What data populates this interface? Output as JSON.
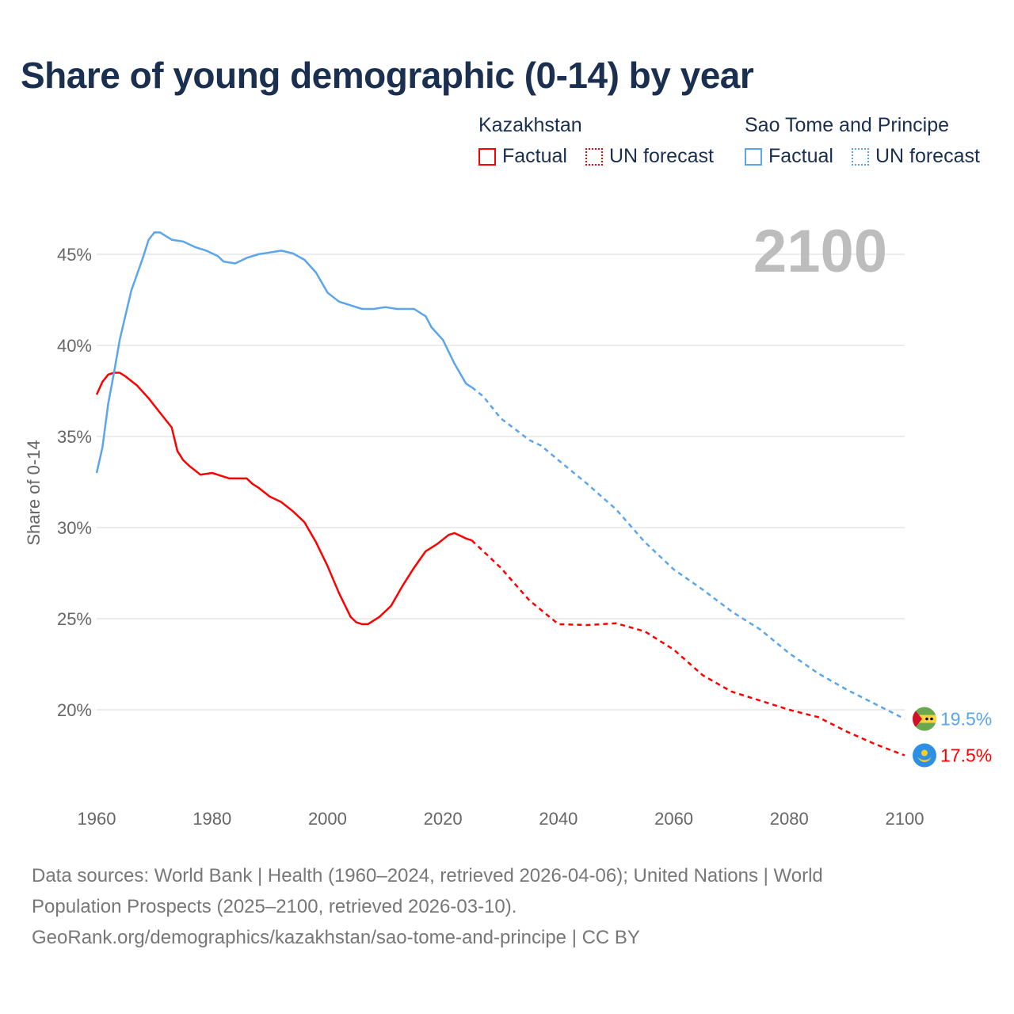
{
  "title": "Share of young demographic (0-14) by year",
  "current_year_label": "2100",
  "legend": [
    {
      "country": "Kazakhstan",
      "color": "#ff0000",
      "factual": "Factual",
      "forecast": "UN forecast"
    },
    {
      "country": "Sao Tome and Principe",
      "color": "#5aa5ec",
      "factual": "Factual",
      "forecast": "UN forecast"
    }
  ],
  "footer": {
    "line1": "Data sources: World Bank | Health (1960–2024, retrieved 2026-04-06); United Nations | World",
    "line2": "Population Prospects (2025–2100, retrieved 2026-03-10).",
    "line3": "GeoRank.org/demographics/kazakhstan/sao-tome-and-principe | CC BY"
  },
  "chart_data": {
    "type": "line",
    "title": "Share of young demographic (0-14) by year",
    "xlabel": "",
    "ylabel": "Share of 0-14",
    "xlim": [
      1960,
      2100
    ],
    "ylim": [
      17,
      47
    ],
    "x_ticks": [
      1960,
      1980,
      2000,
      2020,
      2040,
      2060,
      2080,
      2100
    ],
    "x_tick_labels": [
      "1960",
      "1980",
      "2000",
      "2020",
      "2040",
      "2060",
      "2080",
      "2100"
    ],
    "y_ticks": [
      20,
      25,
      30,
      35,
      40,
      45
    ],
    "y_tick_labels": [
      "20%",
      "25%",
      "30%",
      "35%",
      "40%",
      "45%"
    ],
    "grid": true,
    "legend_position": "top-right",
    "series": [
      {
        "name": "Kazakhstan",
        "color": "#ff0000",
        "end_label": "17.5%",
        "factual": [
          [
            1960,
            37.3
          ],
          [
            1961,
            38.0
          ],
          [
            1962,
            38.4
          ],
          [
            1963,
            38.5
          ],
          [
            1964,
            38.5
          ],
          [
            1965,
            38.3
          ],
          [
            1967,
            37.8
          ],
          [
            1969,
            37.1
          ],
          [
            1971,
            36.3
          ],
          [
            1973,
            35.5
          ],
          [
            1974,
            34.2
          ],
          [
            1975,
            33.7
          ],
          [
            1976,
            33.4
          ],
          [
            1978,
            32.9
          ],
          [
            1980,
            33.0
          ],
          [
            1981,
            32.9
          ],
          [
            1983,
            32.7
          ],
          [
            1986,
            32.7
          ],
          [
            1987,
            32.4
          ],
          [
            1988,
            32.2
          ],
          [
            1990,
            31.7
          ],
          [
            1992,
            31.4
          ],
          [
            1994,
            30.9
          ],
          [
            1996,
            30.3
          ],
          [
            1998,
            29.2
          ],
          [
            2000,
            27.9
          ],
          [
            2002,
            26.4
          ],
          [
            2004,
            25.1
          ],
          [
            2005,
            24.8
          ],
          [
            2006,
            24.7
          ],
          [
            2007,
            24.7
          ],
          [
            2009,
            25.1
          ],
          [
            2011,
            25.7
          ],
          [
            2013,
            26.8
          ],
          [
            2015,
            27.8
          ],
          [
            2017,
            28.7
          ],
          [
            2019,
            29.1
          ],
          [
            2021,
            29.6
          ],
          [
            2022,
            29.7
          ],
          [
            2024,
            29.4
          ],
          [
            2025,
            29.3
          ]
        ],
        "forecast": [
          [
            2025,
            29.3
          ],
          [
            2030,
            27.8
          ],
          [
            2035,
            26.0
          ],
          [
            2040,
            24.7
          ],
          [
            2045,
            24.65
          ],
          [
            2050,
            24.75
          ],
          [
            2055,
            24.3
          ],
          [
            2060,
            23.3
          ],
          [
            2065,
            21.9
          ],
          [
            2070,
            21.0
          ],
          [
            2075,
            20.5
          ],
          [
            2080,
            20.0
          ],
          [
            2085,
            19.6
          ],
          [
            2090,
            18.8
          ],
          [
            2095,
            18.1
          ],
          [
            2100,
            17.5
          ]
        ]
      },
      {
        "name": "Sao Tome and Principe",
        "color": "#5aa5ec",
        "end_label": "19.5%",
        "factual": [
          [
            1960,
            33.0
          ],
          [
            1961,
            34.4
          ],
          [
            1962,
            36.8
          ],
          [
            1963,
            38.5
          ],
          [
            1964,
            40.3
          ],
          [
            1966,
            43.0
          ],
          [
            1968,
            44.8
          ],
          [
            1969,
            45.8
          ],
          [
            1970,
            46.2
          ],
          [
            1971,
            46.2
          ],
          [
            1973,
            45.8
          ],
          [
            1975,
            45.7
          ],
          [
            1977,
            45.4
          ],
          [
            1979,
            45.2
          ],
          [
            1981,
            44.9
          ],
          [
            1982,
            44.6
          ],
          [
            1984,
            44.5
          ],
          [
            1986,
            44.8
          ],
          [
            1988,
            45.0
          ],
          [
            1990,
            45.1
          ],
          [
            1992,
            45.2
          ],
          [
            1994,
            45.05
          ],
          [
            1996,
            44.7
          ],
          [
            1998,
            44.0
          ],
          [
            2000,
            42.9
          ],
          [
            2002,
            42.4
          ],
          [
            2004,
            42.2
          ],
          [
            2006,
            42.0
          ],
          [
            2008,
            42.0
          ],
          [
            2010,
            42.1
          ],
          [
            2012,
            42.0
          ],
          [
            2015,
            42.0
          ],
          [
            2017,
            41.6
          ],
          [
            2018,
            41.0
          ],
          [
            2020,
            40.3
          ],
          [
            2022,
            39.0
          ],
          [
            2024,
            37.9
          ],
          [
            2025,
            37.7
          ]
        ],
        "forecast": [
          [
            2025,
            37.7
          ],
          [
            2027,
            37.2
          ],
          [
            2030,
            36.0
          ],
          [
            2035,
            34.8
          ],
          [
            2037,
            34.5
          ],
          [
            2040,
            33.7
          ],
          [
            2045,
            32.4
          ],
          [
            2050,
            31.0
          ],
          [
            2055,
            29.2
          ],
          [
            2060,
            27.7
          ],
          [
            2065,
            26.6
          ],
          [
            2070,
            25.4
          ],
          [
            2075,
            24.4
          ],
          [
            2080,
            23.1
          ],
          [
            2085,
            22.0
          ],
          [
            2090,
            21.1
          ],
          [
            2095,
            20.3
          ],
          [
            2100,
            19.5
          ]
        ]
      }
    ]
  }
}
